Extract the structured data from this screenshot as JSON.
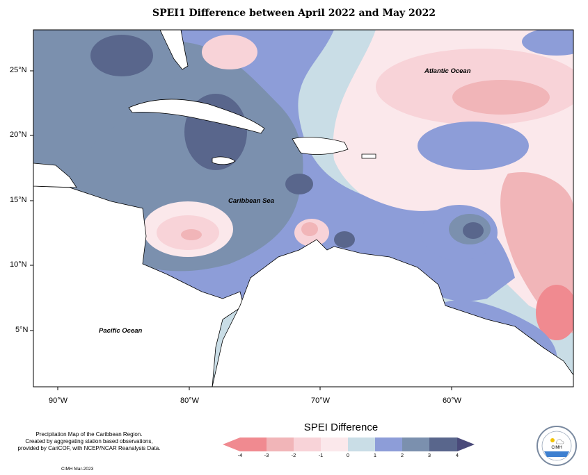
{
  "title": "SPEI1 Difference between April 2022 and May 2022",
  "lat_labels": [
    "25°N",
    "20°N",
    "15°N",
    "10°N",
    "5°N"
  ],
  "lon_labels": [
    "90°W",
    "80°W",
    "70°W",
    "60°W"
  ],
  "ocean_labels": {
    "atlantic": "Atlantic Ocean",
    "caribbean": "Caribbean Sea",
    "pacific": "Pacific Ocean"
  },
  "credit": {
    "line1": "Precipitation Map of the Caribbean Region.",
    "line2": "Created by aggregating station based observations,",
    "line3": "provided by CariCOF, with NCEP/NCAR Reanalysis Data.",
    "date": "CIMH Mar-2023"
  },
  "legend": {
    "title": "SPEI Difference",
    "ticks": [
      "-4",
      "-3",
      "-2",
      "-1",
      "0",
      "1",
      "2",
      "3",
      "4"
    ],
    "colors": [
      "#f08a90",
      "#f1b5b8",
      "#f8d3d8",
      "#fbe8eb",
      "#c9dde6",
      "#8d9dd8",
      "#7b90ae",
      "#59668c"
    ]
  },
  "logo": {
    "text": "CIMH",
    "ring_text": "CARIBBEAN INSTITUTE FOR METEOROLOGY AND HYDROLOGY"
  }
}
